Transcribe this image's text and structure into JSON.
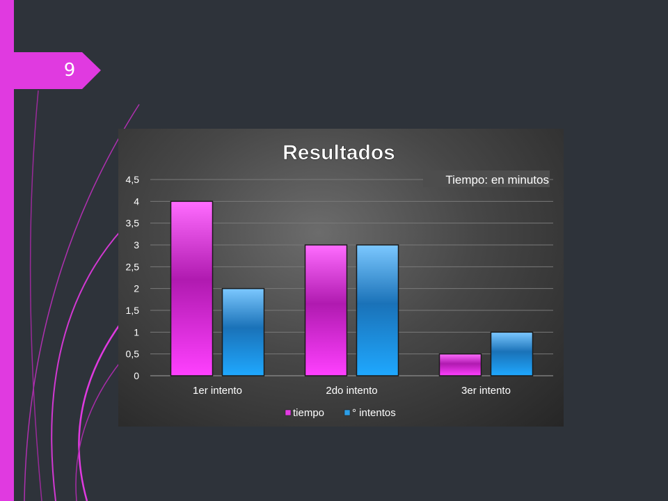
{
  "slide": {
    "page_number": "9",
    "accent_color": "#e03ae0",
    "background_color": "#2e333a"
  },
  "chart_data": {
    "type": "bar",
    "title": "Resultados",
    "annotation": "Tiempo: en minutos",
    "categories": [
      "1er intento",
      "2do intento",
      "3er intento"
    ],
    "series": [
      {
        "name": "tiempo",
        "values": [
          4,
          3,
          0.5
        ],
        "color": "#e33be3"
      },
      {
        "name": "° intentos",
        "values": [
          2,
          3,
          1
        ],
        "color": "#2d9ee8"
      }
    ],
    "ylim": [
      0,
      4.5
    ],
    "yticks": [
      "0",
      "0,5",
      "1",
      "1,5",
      "2",
      "2,5",
      "3",
      "3,5",
      "4",
      "4,5"
    ],
    "ytick_values": [
      0,
      0.5,
      1,
      1.5,
      2,
      2.5,
      3,
      3.5,
      4,
      4.5
    ],
    "grid": true,
    "legend": "bottom"
  }
}
